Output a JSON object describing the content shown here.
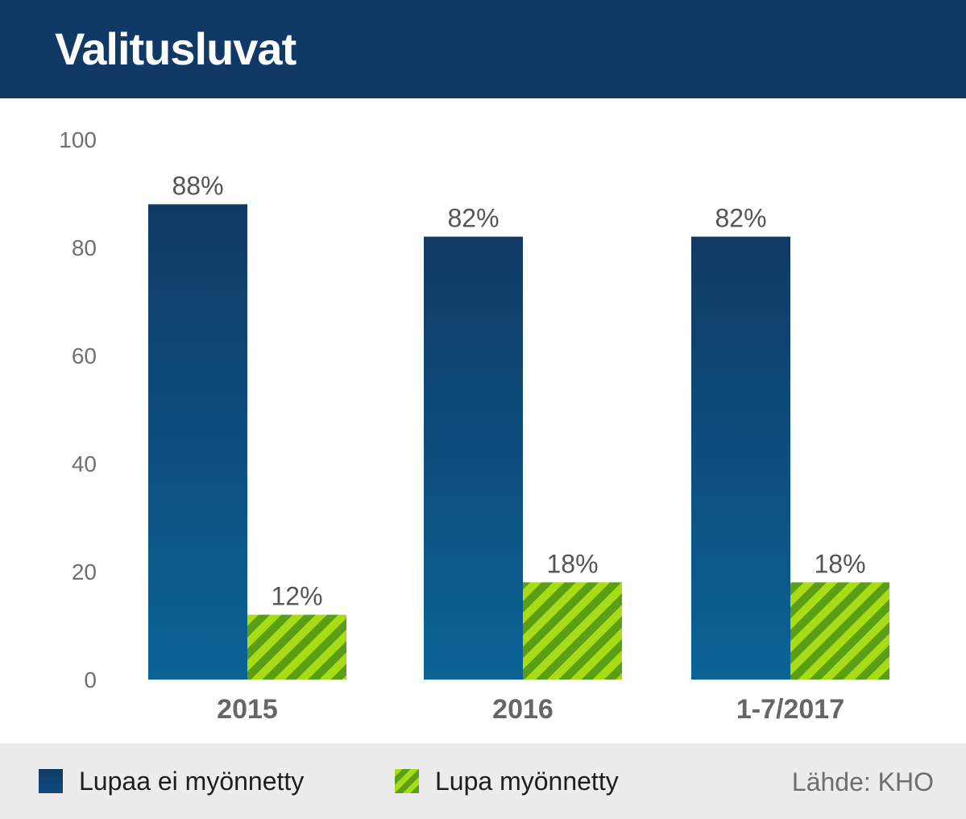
{
  "header": {
    "title": "Valitusluvat"
  },
  "chart_data": {
    "type": "bar",
    "categories": [
      "2015",
      "2016",
      "1-7/2017"
    ],
    "series": [
      {
        "name": "Lupaa ei myönnetty",
        "values": [
          88,
          82,
          82
        ],
        "labels": [
          "88%",
          "82%",
          "82%"
        ],
        "color": "#103a65"
      },
      {
        "name": "Lupa myönnetty",
        "values": [
          12,
          18,
          18
        ],
        "labels": [
          "12%",
          "18%",
          "18%"
        ],
        "color": "#a8dc14"
      }
    ],
    "ylim": [
      0,
      100
    ],
    "yticks": [
      0,
      20,
      40,
      60,
      80,
      100
    ],
    "grid": false,
    "legend": "bottom-left"
  },
  "footer": {
    "source": "Lähde: KHO"
  }
}
